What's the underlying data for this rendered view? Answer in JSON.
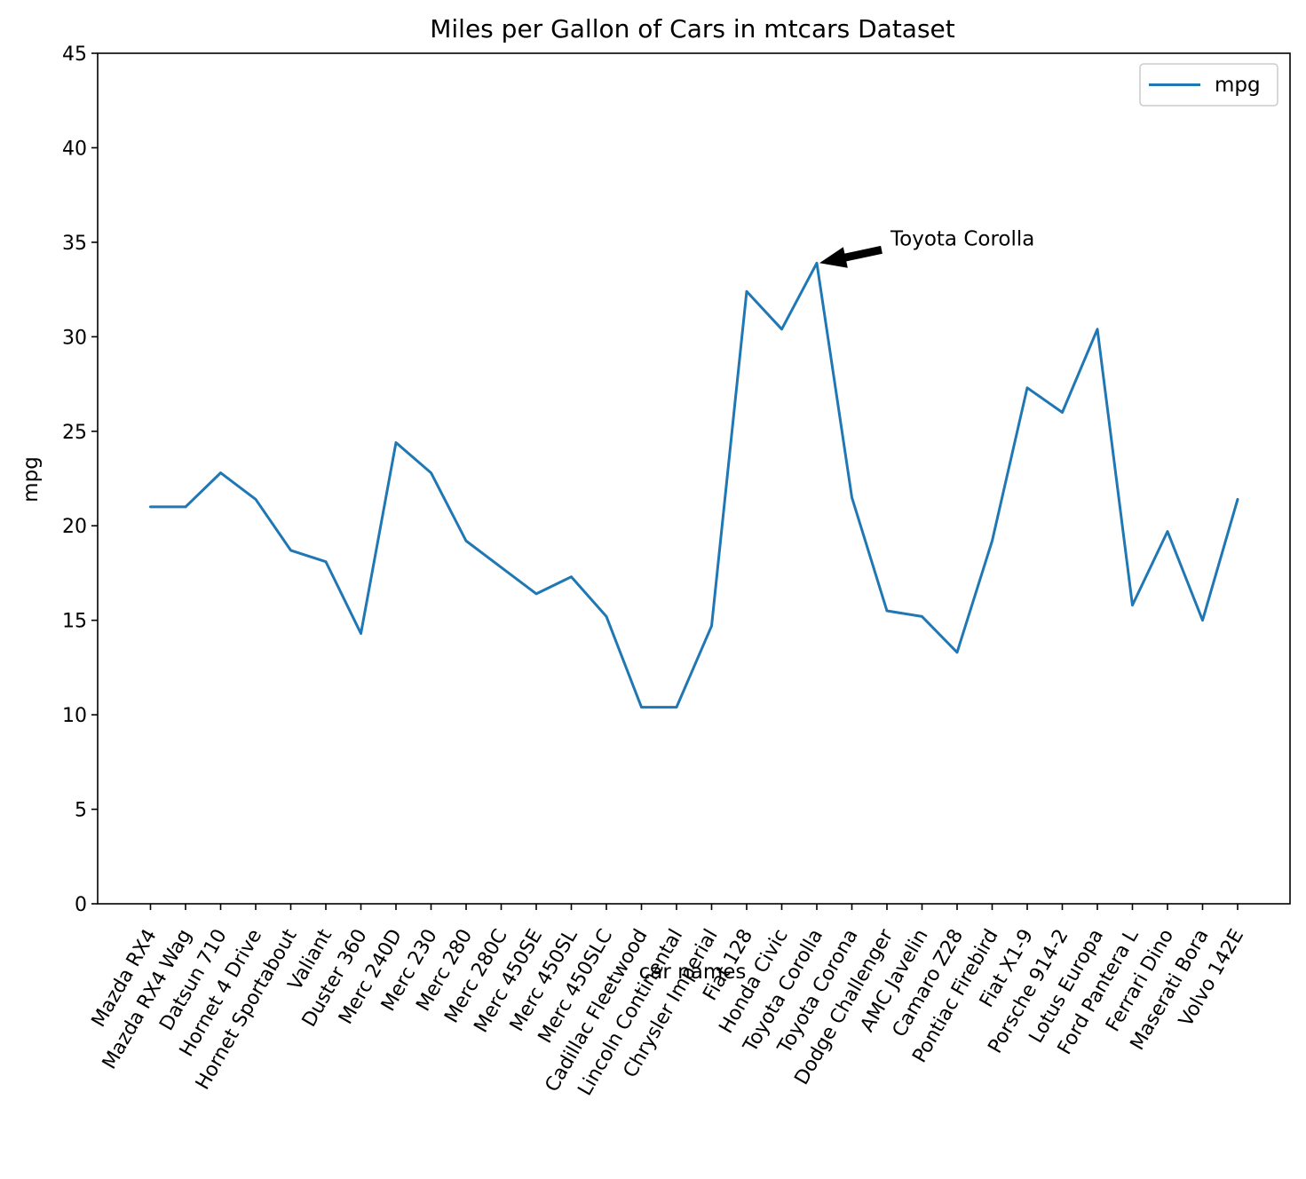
{
  "chart_data": {
    "type": "line",
    "title": "Miles per Gallon of Cars in mtcars Dataset",
    "xlabel": "car names",
    "ylabel": "mpg",
    "ylim": [
      0,
      45
    ],
    "yticks": [
      0,
      5,
      10,
      15,
      20,
      25,
      30,
      35,
      40,
      45
    ],
    "grid": false,
    "legend": {
      "placement": "top-right",
      "entries": [
        "mpg"
      ]
    },
    "colors": {
      "series": "#1f77b4",
      "axes": "#000000",
      "background": "#ffffff"
    },
    "categories": [
      "Mazda RX4",
      "Mazda RX4 Wag",
      "Datsun 710",
      "Hornet 4 Drive",
      "Hornet Sportabout",
      "Valiant",
      "Duster 360",
      "Merc 240D",
      "Merc 230",
      "Merc 280",
      "Merc 280C",
      "Merc 450SE",
      "Merc 450SL",
      "Merc 450SLC",
      "Cadillac Fleetwood",
      "Lincoln Continental",
      "Chrysler Imperial",
      "Fiat 128",
      "Honda Civic",
      "Toyota Corolla",
      "Toyota Corona",
      "Dodge Challenger",
      "AMC Javelin",
      "Camaro Z28",
      "Pontiac Firebird",
      "Fiat X1-9",
      "Porsche 914-2",
      "Lotus Europa",
      "Ford Pantera L",
      "Ferrari Dino",
      "Maserati Bora",
      "Volvo 142E"
    ],
    "series": [
      {
        "name": "mpg",
        "values": [
          21.0,
          21.0,
          22.8,
          21.4,
          18.7,
          18.1,
          14.3,
          24.4,
          22.8,
          19.2,
          17.8,
          16.4,
          17.3,
          15.2,
          10.4,
          10.4,
          14.7,
          32.4,
          30.4,
          33.9,
          21.5,
          15.5,
          15.2,
          13.3,
          19.2,
          27.3,
          26.0,
          30.4,
          15.8,
          19.7,
          15.0,
          21.4
        ]
      }
    ],
    "annotations": [
      {
        "text": "Toyota Corolla",
        "category": "Toyota Corolla",
        "value": 33.9
      }
    ]
  }
}
